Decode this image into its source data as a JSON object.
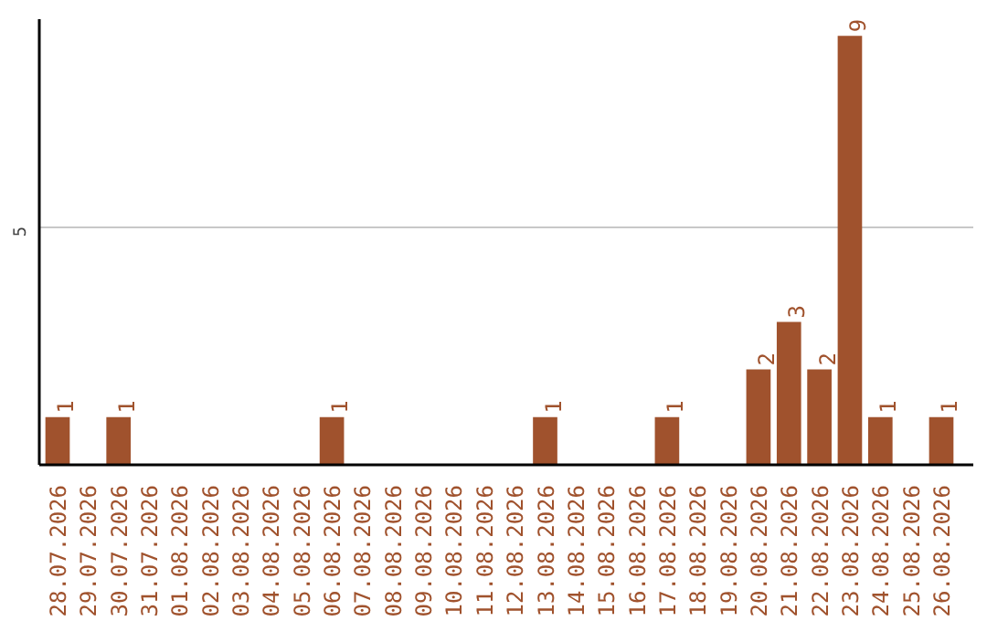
{
  "chart_data": {
    "type": "bar",
    "categories": [
      "28.07.2026",
      "29.07.2026",
      "30.07.2026",
      "31.07.2026",
      "01.08.2026",
      "02.08.2026",
      "03.08.2026",
      "04.08.2026",
      "05.08.2026",
      "06.08.2026",
      "07.08.2026",
      "08.08.2026",
      "09.08.2026",
      "10.08.2026",
      "11.08.2026",
      "12.08.2026",
      "13.08.2026",
      "14.08.2026",
      "15.08.2026",
      "16.08.2026",
      "17.08.2026",
      "18.08.2026",
      "19.08.2026",
      "20.08.2026",
      "21.08.2026",
      "22.08.2026",
      "23.08.2026",
      "24.08.2026",
      "25.08.2026",
      "26.08.2026"
    ],
    "values": [
      1,
      0,
      1,
      0,
      0,
      0,
      0,
      0,
      0,
      1,
      0,
      0,
      0,
      0,
      0,
      0,
      1,
      0,
      0,
      0,
      1,
      0,
      0,
      2,
      3,
      2,
      9,
      1,
      0,
      1
    ],
    "value_labels": [
      "1",
      null,
      "1",
      null,
      null,
      null,
      null,
      null,
      null,
      "1",
      null,
      null,
      null,
      null,
      null,
      null,
      "1",
      null,
      null,
      null,
      "1",
      null,
      null,
      "2",
      "3",
      "2",
      "9",
      "1",
      null,
      "1"
    ],
    "color": "#a0522d",
    "ylim": [
      0,
      9.35
    ],
    "yticks": [
      5
    ],
    "grid": "y"
  }
}
